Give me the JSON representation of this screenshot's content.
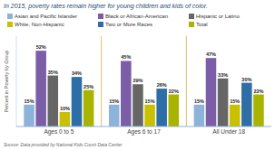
{
  "chart_data": {
    "type": "bar",
    "title": "In 2015, poverty rates remain higher for young children and kids of color.",
    "categories": [
      "Ages 0 to 5",
      "Ages 6 to 17",
      "All Under 18"
    ],
    "series": [
      {
        "name": "Asian and Pacific Islander",
        "color": "#8db4d8",
        "values": [
          15,
          15,
          15
        ],
        "value_labels": [
          "15%",
          "15%",
          "15%"
        ]
      },
      {
        "name": "Black or African-American",
        "color": "#7b5ea7",
        "values": [
          52,
          45,
          47
        ],
        "value_labels": [
          "52%",
          "45%",
          "47%"
        ]
      },
      {
        "name": "Hispanic or Latino",
        "color": "#666666",
        "values": [
          35,
          29,
          33
        ],
        "value_labels": [
          "35%",
          "29%",
          "33%"
        ]
      },
      {
        "name": "White, Non-Hispanic",
        "color": "#c8c000",
        "values": [
          10,
          15,
          15
        ],
        "value_labels": [
          "10%",
          "15%",
          "15%"
        ]
      },
      {
        "name": "Two or More Races",
        "color": "#2e6ea6",
        "values": [
          34,
          26,
          30
        ],
        "value_labels": [
          "34%",
          "26%",
          "30%"
        ]
      },
      {
        "name": "Total",
        "color": "#a8b400",
        "values": [
          25,
          22,
          22
        ],
        "value_labels": [
          "25%",
          "22%",
          "22%"
        ]
      }
    ],
    "ylabel": "Percent in Poverty by Group",
    "source": "Source: Data provided by National Kids Count Data Center",
    "ylim": [
      0,
      62
    ],
    "tick_labels": "x",
    "data_labels": true,
    "legend": "top"
  }
}
